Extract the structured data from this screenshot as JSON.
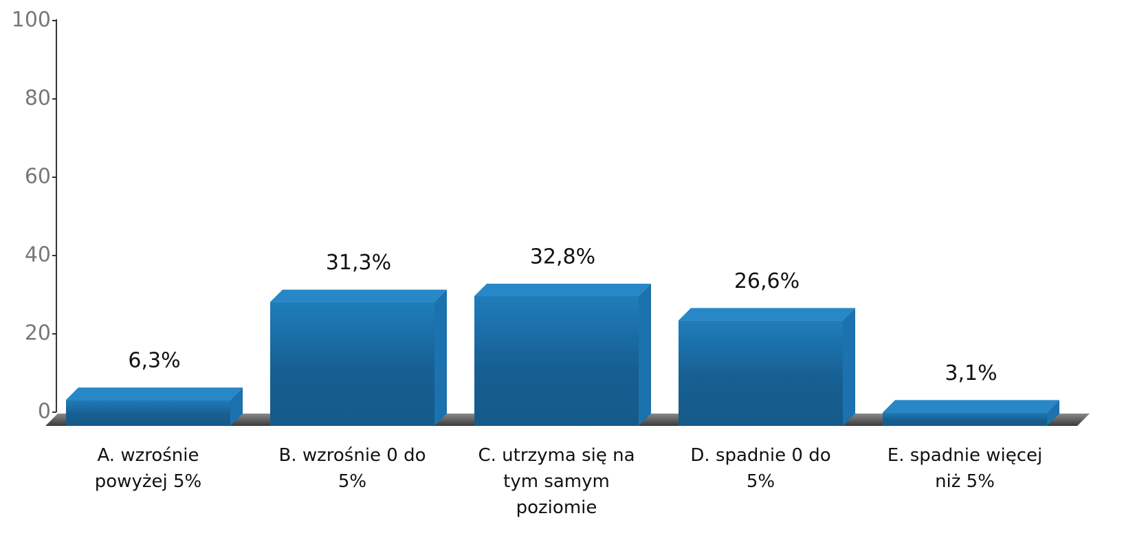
{
  "chart_data": {
    "type": "bar3d",
    "categories": [
      "A. wzrośnie powyżej 5%",
      "B. wzrośnie 0 do 5%",
      "C. utrzyma się na tym samym poziomie",
      "D. spadnie 0 do 5%",
      "E. spadnie więcej niż 5%"
    ],
    "values": [
      6.3,
      31.3,
      32.8,
      26.6,
      3.1
    ],
    "value_labels": [
      "6,3%",
      "31,3%",
      "32,8%",
      "26,6%",
      "3,1%"
    ],
    "color": "#1a6aa5",
    "ylim": [
      0,
      100
    ],
    "yticks": [
      0,
      20,
      40,
      60,
      80,
      100
    ],
    "grid": false
  }
}
